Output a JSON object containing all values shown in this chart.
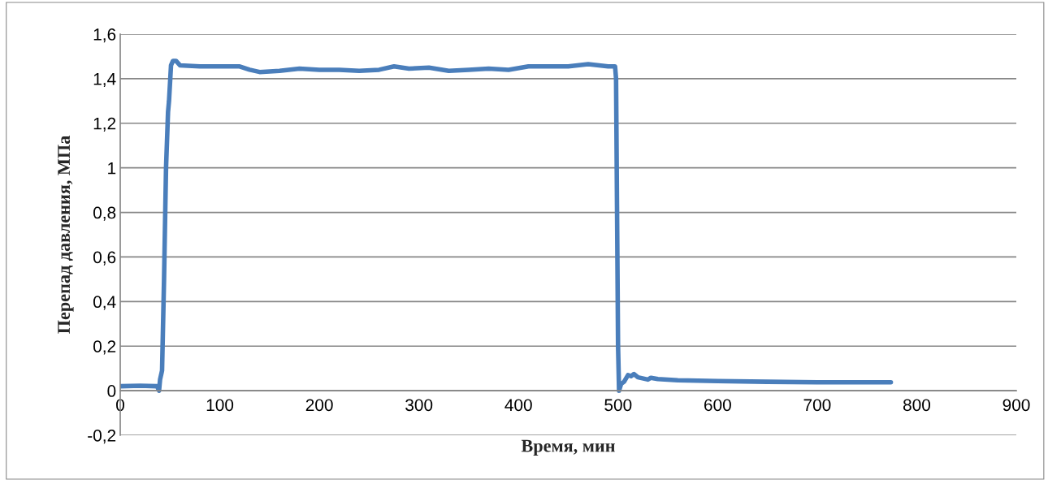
{
  "chart_data": {
    "type": "line",
    "xlabel": "Время, мин",
    "ylabel": "Перепад давления, МПа",
    "x": [
      0,
      20,
      37,
      39,
      40,
      42,
      44,
      46,
      48,
      49,
      51,
      53,
      56,
      60,
      80,
      100,
      120,
      130,
      140,
      160,
      180,
      200,
      220,
      240,
      260,
      275,
      290,
      310,
      330,
      350,
      370,
      390,
      410,
      430,
      450,
      470,
      490,
      497,
      498,
      499,
      500,
      501,
      503,
      506,
      510,
      513,
      516,
      520,
      530,
      533,
      540,
      560,
      600,
      650,
      700,
      774
    ],
    "series": [
      {
        "color": "#4a7ebb",
        "values": [
          0.02,
          0.022,
          0.02,
          0.0,
          0.05,
          0.09,
          0.5,
          1.0,
          1.25,
          1.3,
          1.46,
          1.48,
          1.48,
          1.46,
          1.455,
          1.455,
          1.455,
          1.44,
          1.43,
          1.435,
          1.445,
          1.44,
          1.44,
          1.435,
          1.44,
          1.455,
          1.445,
          1.45,
          1.435,
          1.44,
          1.445,
          1.44,
          1.455,
          1.455,
          1.455,
          1.465,
          1.455,
          1.455,
          1.4,
          0.8,
          0.2,
          0.0,
          0.03,
          0.04,
          0.07,
          0.065,
          0.075,
          0.06,
          0.05,
          0.058,
          0.052,
          0.047,
          0.043,
          0.04,
          0.038,
          0.038
        ]
      }
    ],
    "xlim": [
      0,
      900
    ],
    "xticks": [
      0,
      100,
      200,
      300,
      400,
      500,
      600,
      700,
      800,
      900
    ],
    "ylim": [
      -0.2,
      1.6
    ],
    "yticks": [
      {
        "value": -0.2,
        "label": "-0,2"
      },
      0,
      {
        "value": 0.2,
        "label": "0,2"
      },
      {
        "value": 0.4,
        "label": "0,4"
      },
      {
        "value": 0.6,
        "label": "0,6"
      },
      {
        "value": 0.8,
        "label": "0,8"
      },
      1,
      {
        "value": 1.2,
        "label": "1,2"
      },
      {
        "value": 1.4,
        "label": "1,4"
      },
      {
        "value": 1.6,
        "label": "1,6"
      }
    ],
    "grid": "y",
    "line_style": "solid"
  }
}
